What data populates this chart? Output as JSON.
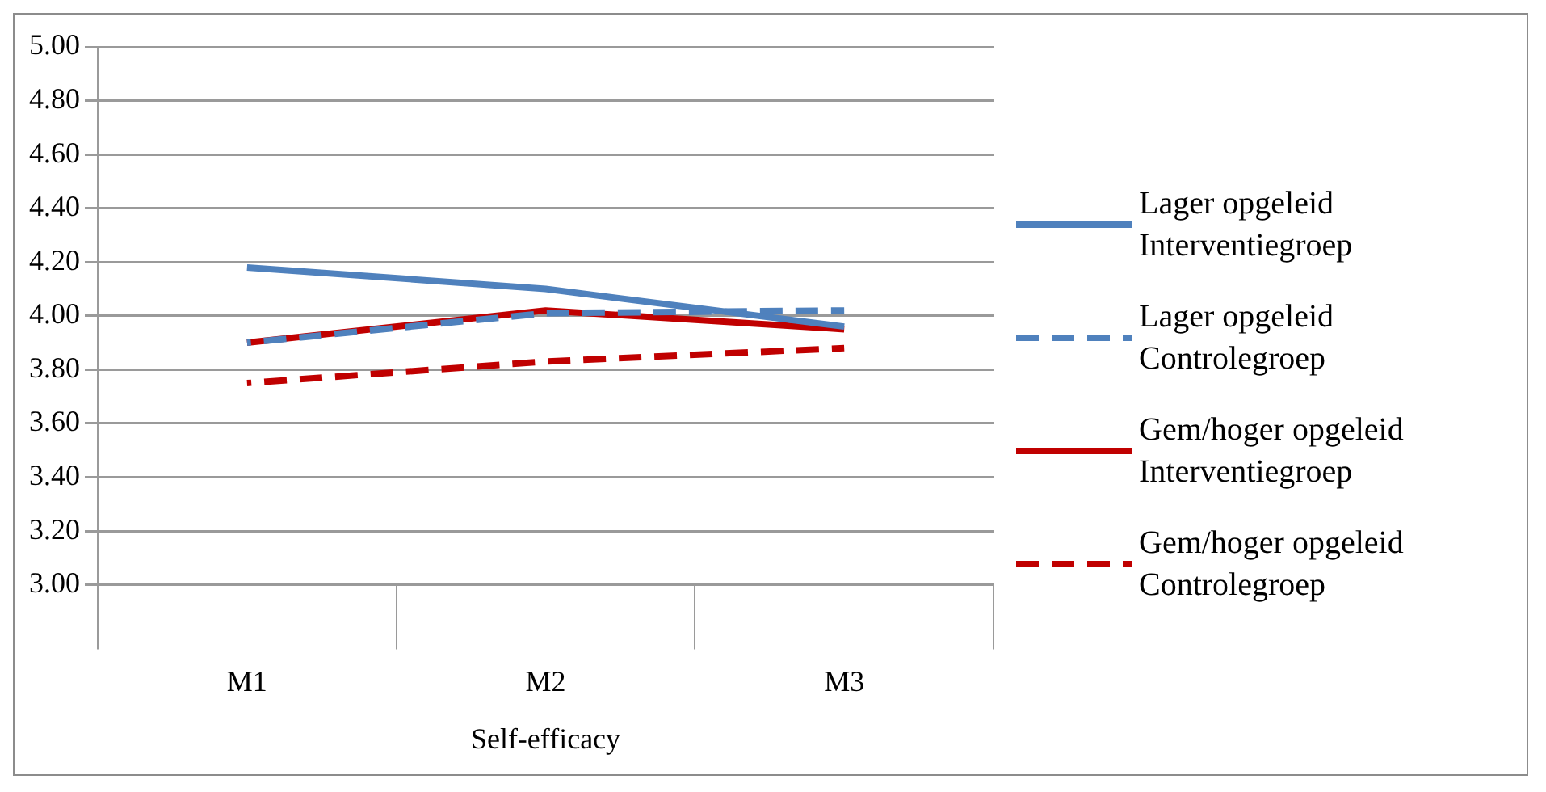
{
  "chart_data": {
    "type": "line",
    "xlabel": "Self-efficacy",
    "categories": [
      "M1",
      "M2",
      "M3"
    ],
    "ylim": [
      3,
      5
    ],
    "yticks": [
      {
        "value": 3,
        "label": "3.00"
      },
      {
        "value": 3.2,
        "label": "3.20"
      },
      {
        "value": 3.4,
        "label": "3.40"
      },
      {
        "value": 3.6,
        "label": "3.60"
      },
      {
        "value": 3.8,
        "label": "3.80"
      },
      {
        "value": 4,
        "label": "4.00"
      },
      {
        "value": 4.2,
        "label": "4.20"
      },
      {
        "value": 4.4,
        "label": "4.40"
      },
      {
        "value": 4.6,
        "label": "4.60"
      },
      {
        "value": 4.8,
        "label": "4.80"
      },
      {
        "value": 5,
        "label": "5.00"
      }
    ],
    "grid": "y",
    "legend": "right",
    "marker": "none",
    "series": [
      {
        "name": "Lager opgeleid Interventiegroep",
        "color": "#4f81bd",
        "line_style": "solid",
        "values": [
          4.18,
          4.1,
          3.96
        ]
      },
      {
        "name": "Lager opgeleid Controlegroep",
        "color": "#4f81bd",
        "line_style": "dashed",
        "values": [
          3.9,
          4.01,
          4.02
        ]
      },
      {
        "name": "Gem/hoger opgeleid Interventiegroep",
        "color": "#c00000",
        "line_style": "solid",
        "values": [
          3.9,
          4.02,
          3.95
        ]
      },
      {
        "name": "Gem/hoger opgeleid Controlegroep",
        "color": "#c00000",
        "line_style": "dashed",
        "values": [
          3.75,
          3.83,
          3.88
        ]
      }
    ]
  }
}
